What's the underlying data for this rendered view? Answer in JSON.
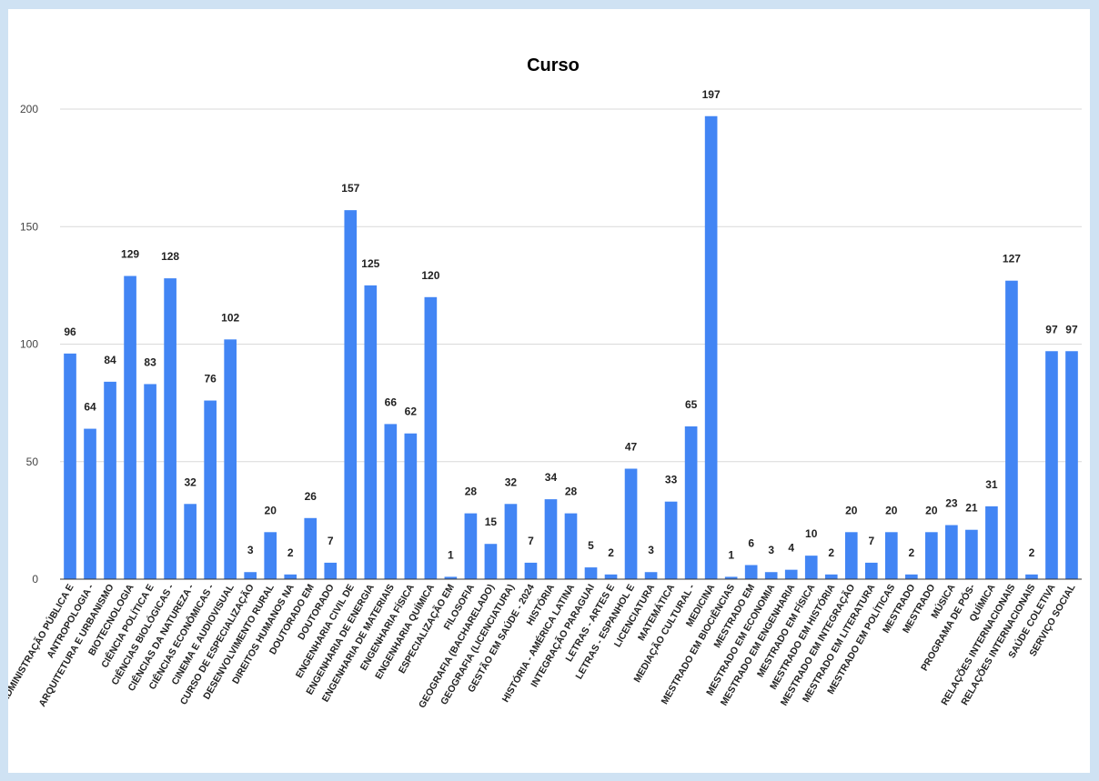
{
  "chart_data": {
    "type": "bar",
    "title": "Curso",
    "xlabel": "",
    "ylabel": "",
    "ylim": [
      0,
      200
    ],
    "yticks": [
      0,
      50,
      100,
      150,
      200
    ],
    "grid": true,
    "legend": "none",
    "bar_color": "#4285f4",
    "categories": [
      "ADMINISTRAÇÃO PÚBLICA E",
      "ANTROPOLOGIA -",
      "ARQUITETURA E URBANISMO",
      "BIOTECNOLOGIA",
      "CIÊNCIA POLÍTICA E",
      "CIÊNCIAS BIOLÓGICAS -",
      "CIÊNCIAS DA NATUREZA -",
      "CIÊNCIAS ECONÔMICAS -",
      "CINEMA E AUDIOVISUAL",
      "CURSO DE ESPECIALIZAÇÃO",
      "DESENVOLVIMENTO RURAL",
      "DIREITOS HUMANOS NA",
      "DOUTORADO EM",
      "DOUTORADO",
      "ENGENHARIA CIVIL DE",
      "ENGENHARIA DE ENERGIA",
      "ENGENHARIA DE MATERIAIS",
      "ENGENHARIA FÍSICA",
      "ENGENHARIA QUÍMICA",
      "ESPECIALIZAÇÃO EM",
      "FILOSOFIA",
      "GEOGRAFIA (BACHARELADO)",
      "GEOGRAFIA (LICENCIATURA)",
      "GESTÃO EM SAÚDE - 2024",
      "HISTÓRIA",
      "HISTÓRIA - AMÉRICA LATINA",
      "INTEGRAÇÃO PARAGUAI",
      "LETRAS - ARTES E",
      "LETRAS - ESPANHOL E",
      "LICENCIATURA",
      "MATEMÁTICA",
      "MEDIAÇÃO CULTURAL -",
      "MEDICINA",
      "MESTRADO EM BIOCIÊNCIAS",
      "MESTRADO EM",
      "MESTRADO EM ECONOMIA",
      "MESTRADO EM ENGENHARIA",
      "MESTRADO EM FÍSICA",
      "MESTRADO EM HISTÓRIA",
      "MESTRADO EM INTEGRAÇÃO",
      "MESTRADO EM LITERATURA",
      "MESTRADO EM POLÍTICAS",
      "MESTRADO",
      "MESTRADO",
      "MÚSICA",
      "PROGRAMA DE PÓS-",
      "QUÍMICA",
      "RELAÇÕES INTERNACIONAIS",
      "RELAÇÕES INTERNACIONAIS",
      "SAÚDE COLETIVA",
      "SERVIÇO SOCIAL"
    ],
    "values": [
      96,
      64,
      84,
      129,
      83,
      128,
      32,
      76,
      102,
      3,
      20,
      2,
      26,
      7,
      157,
      125,
      66,
      62,
      120,
      1,
      28,
      15,
      32,
      7,
      34,
      28,
      5,
      2,
      47,
      3,
      33,
      65,
      197,
      1,
      6,
      3,
      4,
      10,
      2,
      20,
      7,
      20,
      2,
      20,
      23,
      21,
      31,
      127,
      2,
      97,
      97
    ]
  }
}
